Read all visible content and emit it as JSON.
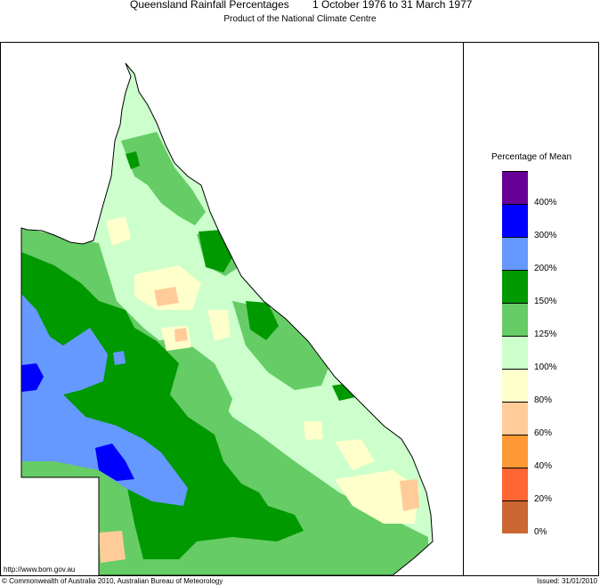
{
  "header": {
    "title": "Queensland Rainfall Percentages",
    "period": "1 October 1976 to 31 March 1977",
    "subtitle": "Product of the National Climate Centre"
  },
  "legend": {
    "title": "Percentage of Mean",
    "classes": [
      {
        "range": "400%+",
        "color": "#660099"
      },
      {
        "range": "300-400%",
        "color": "#0000ff"
      },
      {
        "range": "200-300%",
        "color": "#6699ff"
      },
      {
        "range": "150-200%",
        "color": "#009900"
      },
      {
        "range": "125-150%",
        "color": "#66cc66"
      },
      {
        "range": "100-125%",
        "color": "#ccffcc"
      },
      {
        "range": "80-100%",
        "color": "#ffffcc"
      },
      {
        "range": "60-80%",
        "color": "#ffcc99"
      },
      {
        "range": "40-60%",
        "color": "#ff9933"
      },
      {
        "range": "20-40%",
        "color": "#ff6633"
      },
      {
        "range": "0-20%",
        "color": "#cc6633"
      }
    ],
    "tick_labels": [
      "400%",
      "300%",
      "200%",
      "150%",
      "125%",
      "100%",
      "80%",
      "60%",
      "40%",
      "20%",
      "0%"
    ]
  },
  "footer": {
    "url": "http://www.bom.gov.au",
    "copyright": "© Commonwealth of Australia 2010, Australian Bureau of Meteorology",
    "issued": "Issued: 31/01/2010"
  },
  "map": {
    "region": "Queensland",
    "outline_color": "#000000"
  }
}
